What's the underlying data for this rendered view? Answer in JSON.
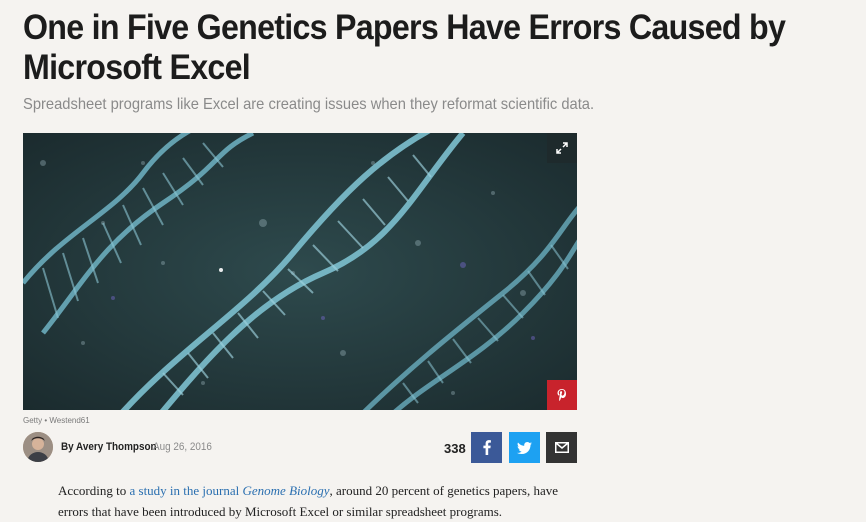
{
  "article": {
    "headline": "One in Five Genetics Papers Have Errors Caused by Microsoft Excel",
    "subheadline": "Spreadsheet programs like Excel are creating issues when they reformat scientific data.",
    "image_credit": "Getty • Westend61",
    "author_prefix": "By",
    "author_name": "Avery Thompson",
    "date": "Aug 26, 2016",
    "share_count": "338",
    "body": {
      "p1_before": "According to ",
      "p1_link_start": "a study in the journal ",
      "p1_link_italic": "Genome Biology",
      "p1_after": ", around 20 percent of genetics papers, have errors that have been introduced by Microsoft Excel or similar spreadsheet programs."
    }
  },
  "icons": {
    "expand": "expand-icon",
    "pinterest": "pinterest-icon",
    "facebook": "facebook-icon",
    "twitter": "twitter-icon",
    "email": "email-icon"
  },
  "colors": {
    "facebook": "#3b5998",
    "twitter": "#1da1f2",
    "email": "#333333",
    "pinterest": "#c8232c",
    "link": "#2a6fb0"
  }
}
